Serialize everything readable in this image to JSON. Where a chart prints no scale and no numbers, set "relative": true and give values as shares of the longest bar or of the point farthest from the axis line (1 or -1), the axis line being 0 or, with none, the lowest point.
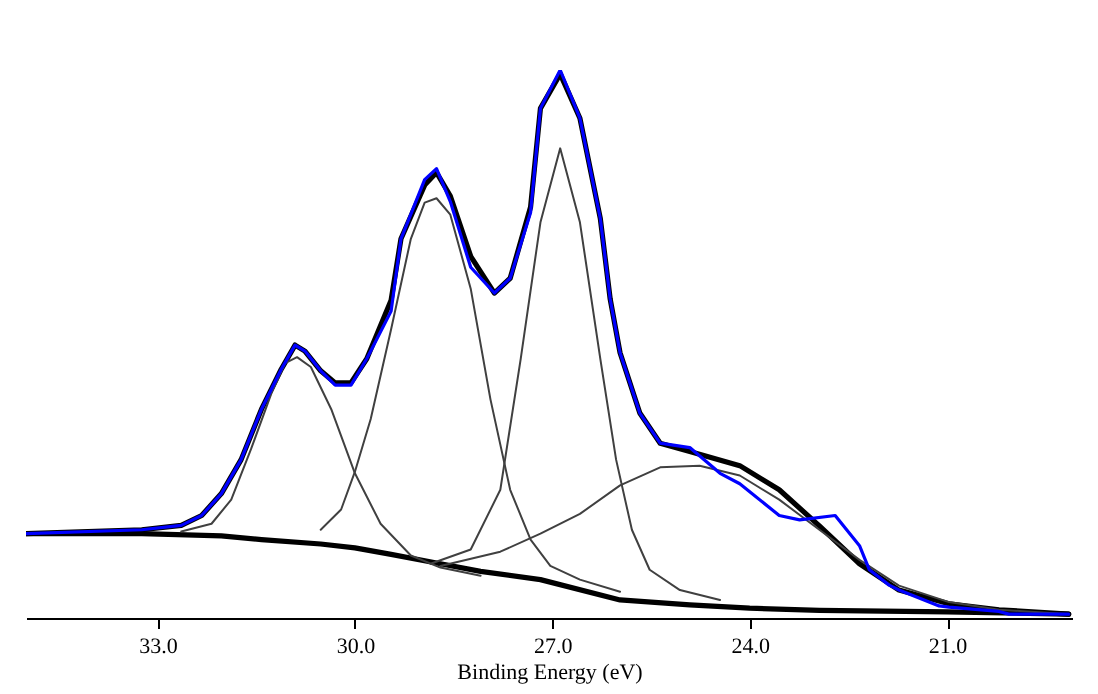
{
  "chart_data": {
    "type": "line",
    "relative": true,
    "xlabel": "Binding Energy (eV)",
    "xlim": [
      35.0,
      19.1
    ],
    "xticks": [
      {
        "value": 33,
        "label": "33.0"
      },
      {
        "value": 30,
        "label": "30.0"
      },
      {
        "value": 27,
        "label": "27.0"
      },
      {
        "value": 24,
        "label": "24.0"
      },
      {
        "value": 21,
        "label": "21.0"
      }
    ],
    "series": [
      {
        "color": "#0000ff",
        "x": [
          35.0,
          33.24,
          32.64,
          32.33,
          32.03,
          31.73,
          31.42,
          31.12,
          30.91,
          30.76,
          30.52,
          30.3,
          30.06,
          29.82,
          29.45,
          29.3,
          28.94,
          28.76,
          28.55,
          28.24,
          27.88,
          27.64,
          27.33,
          27.18,
          26.88,
          26.58,
          26.27,
          26.12,
          25.97,
          25.67,
          25.36,
          24.91,
          24.45,
          24.15,
          23.55,
          23.24,
          22.7,
          22.33,
          22.18,
          21.88,
          21.73,
          21.12,
          20.97,
          20.21,
          20.06,
          19.15
        ],
        "values": [
          0.154,
          0.161,
          0.169,
          0.187,
          0.227,
          0.289,
          0.381,
          0.454,
          0.498,
          0.487,
          0.451,
          0.425,
          0.425,
          0.473,
          0.56,
          0.692,
          0.8,
          0.82,
          0.76,
          0.64,
          0.593,
          0.62,
          0.74,
          0.93,
          1.0,
          0.912,
          0.729,
          0.582,
          0.484,
          0.374,
          0.319,
          0.311,
          0.264,
          0.245,
          0.187,
          0.179,
          0.187,
          0.132,
          0.088,
          0.06,
          0.051,
          0.022,
          0.02,
          0.012,
          0.007,
          0.007
        ]
      },
      {
        "color": "#000000",
        "x": [
          35.0,
          33.24,
          32.64,
          32.33,
          32.03,
          31.73,
          31.42,
          31.12,
          30.91,
          30.76,
          30.52,
          30.3,
          30.06,
          29.82,
          29.45,
          29.3,
          28.94,
          28.76,
          28.55,
          28.24,
          27.88,
          27.64,
          27.33,
          27.18,
          26.88,
          26.58,
          26.27,
          26.12,
          25.97,
          25.67,
          25.36,
          24.91,
          24.15,
          23.55,
          22.94,
          22.33,
          21.73,
          20.97,
          20.21,
          19.15
        ],
        "values": [
          0.154,
          0.161,
          0.169,
          0.187,
          0.227,
          0.289,
          0.381,
          0.454,
          0.498,
          0.487,
          0.451,
          0.429,
          0.429,
          0.473,
          0.58,
          0.692,
          0.79,
          0.813,
          0.77,
          0.66,
          0.593,
          0.62,
          0.75,
          0.93,
          0.993,
          0.912,
          0.729,
          0.582,
          0.484,
          0.374,
          0.319,
          0.304,
          0.278,
          0.234,
          0.168,
          0.099,
          0.051,
          0.026,
          0.015,
          0.007
        ]
      },
      {
        "color": "#000000",
        "x": [
          35.0,
          33.24,
          32.03,
          31.42,
          30.52,
          30.0,
          29.45,
          28.7,
          28.09,
          27.18,
          25.97,
          24.91,
          24.0,
          22.94,
          21.0,
          19.15
        ],
        "values": [
          0.154,
          0.154,
          0.15,
          0.143,
          0.135,
          0.128,
          0.116,
          0.099,
          0.085,
          0.07,
          0.033,
          0.024,
          0.018,
          0.014,
          0.011,
          0.007
        ]
      },
      {
        "color": "#404040",
        "x": [
          32.64,
          32.18,
          31.88,
          31.58,
          31.27,
          31.06,
          30.88,
          30.67,
          30.36,
          30.0,
          29.61,
          29.15,
          28.7,
          28.09
        ],
        "values": [
          0.158,
          0.172,
          0.216,
          0.308,
          0.41,
          0.465,
          0.476,
          0.458,
          0.381,
          0.264,
          0.172,
          0.114,
          0.092,
          0.077
        ]
      },
      {
        "color": "#404040",
        "x": [
          30.52,
          30.21,
          30.0,
          29.76,
          29.45,
          29.15,
          28.94,
          28.76,
          28.55,
          28.24,
          27.94,
          27.64,
          27.33,
          27.03,
          26.58,
          25.97
        ],
        "values": [
          0.161,
          0.198,
          0.267,
          0.363,
          0.527,
          0.692,
          0.758,
          0.766,
          0.736,
          0.601,
          0.399,
          0.234,
          0.143,
          0.095,
          0.07,
          0.048
        ]
      },
      {
        "color": "#404040",
        "x": [
          28.85,
          28.24,
          27.79,
          27.48,
          27.18,
          26.88,
          26.58,
          26.27,
          26.03,
          25.79,
          25.52,
          25.06,
          24.45
        ],
        "values": [
          0.099,
          0.125,
          0.234,
          0.473,
          0.722,
          0.857,
          0.722,
          0.473,
          0.289,
          0.161,
          0.088,
          0.051,
          0.033
        ]
      },
      {
        "color": "#404040",
        "x": [
          28.7,
          27.79,
          27.18,
          26.58,
          25.97,
          25.36,
          24.76,
          24.15,
          23.55,
          22.94,
          22.33,
          21.73,
          20.97,
          20.21,
          19.15
        ],
        "values": [
          0.095,
          0.121,
          0.154,
          0.19,
          0.242,
          0.275,
          0.278,
          0.26,
          0.216,
          0.161,
          0.106,
          0.059,
          0.029,
          0.015,
          0.007
        ]
      }
    ]
  }
}
